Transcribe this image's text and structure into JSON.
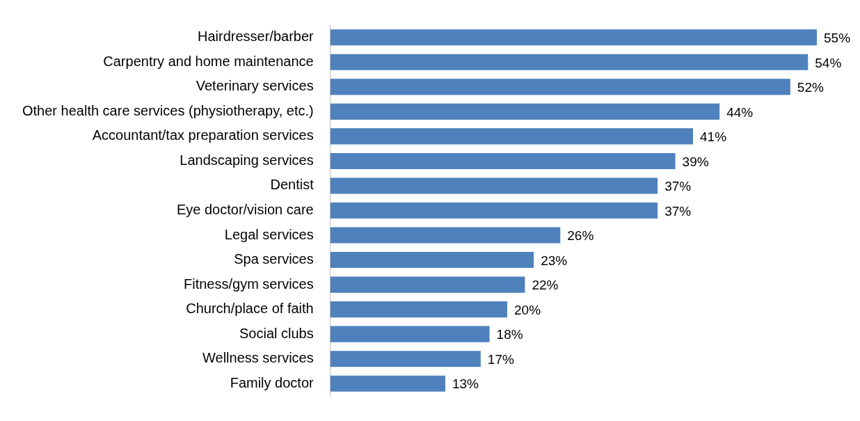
{
  "chart_data": {
    "type": "bar",
    "orientation": "horizontal",
    "categories": [
      "Hairdresser/barber",
      "Carpentry and home maintenance",
      "Veterinary services",
      "Other health care services (physiotherapy, etc.)",
      "Accountant/tax preparation services",
      "Landscaping services",
      "Dentist",
      "Eye doctor/vision care",
      "Legal services",
      "Spa services",
      "Fitness/gym services",
      "Church/place of faith",
      "Social clubs",
      "Wellness services",
      "Family doctor"
    ],
    "values": [
      55,
      54,
      52,
      44,
      41,
      39,
      37,
      37,
      26,
      23,
      22,
      20,
      18,
      17,
      13
    ],
    "value_labels": [
      "55%",
      "54%",
      "52%",
      "44%",
      "41%",
      "39%",
      "37%",
      "37%",
      "26%",
      "23%",
      "22%",
      "20%",
      "18%",
      "17%",
      "13%"
    ],
    "color": "#4f81bd",
    "xlim": [
      0,
      55
    ],
    "tick_labels": "y"
  }
}
